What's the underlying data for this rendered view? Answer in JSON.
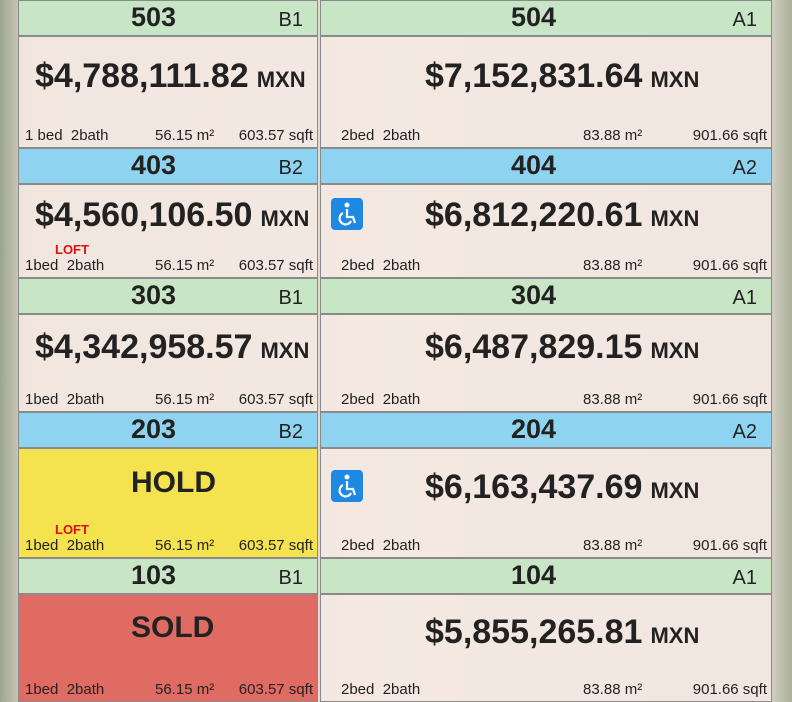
{
  "rows": [
    {
      "left": {
        "unit": "503",
        "model": "B1",
        "price": "$4,788,111.82",
        "currency": "MXN",
        "rooms": "1 bed  2bath",
        "m2": "56.15 m²",
        "sqft": "603.57 sqft"
      },
      "right": {
        "unit": "504",
        "model": "A1",
        "price": "$7,152,831.64",
        "currency": "MXN",
        "rooms": "2bed  2bath",
        "m2": "83.88 m²",
        "sqft": "901.66 sqft"
      }
    },
    {
      "left": {
        "unit": "403",
        "model": "B2",
        "price": "$4,560,106.50",
        "currency": "MXN",
        "loft": "LOFT",
        "rooms": "1bed  2bath",
        "m2": "56.15 m²",
        "sqft": "603.57 sqft"
      },
      "right": {
        "unit": "404",
        "model": "A2",
        "price": "$6,812,220.61",
        "currency": "MXN",
        "rooms": "2bed  2bath",
        "m2": "83.88 m²",
        "sqft": "901.66 sqft"
      }
    },
    {
      "left": {
        "unit": "303",
        "model": "B1",
        "price": "$4,342,958.57",
        "currency": "MXN",
        "rooms": "1bed  2bath",
        "m2": "56.15 m²",
        "sqft": "603.57 sqft"
      },
      "right": {
        "unit": "304",
        "model": "A1",
        "price": "$6,487,829.15",
        "currency": "MXN",
        "rooms": "2bed  2bath",
        "m2": "83.88 m²",
        "sqft": "901.66 sqft"
      }
    },
    {
      "left": {
        "unit": "203",
        "model": "B2",
        "status": "HOLD",
        "loft": "LOFT",
        "rooms": "1bed  2bath",
        "m2": "56.15 m²",
        "sqft": "603.57 sqft"
      },
      "right": {
        "unit": "204",
        "model": "A2",
        "price": "$6,163,437.69",
        "currency": "MXN",
        "rooms": "2bed  2bath",
        "m2": "83.88 m²",
        "sqft": "901.66 sqft"
      }
    },
    {
      "left": {
        "unit": "103",
        "model": "B1",
        "status": "SOLD",
        "rooms": "1bed  2bath",
        "m2": "56.15 m²",
        "sqft": "603.57 sqft"
      },
      "right": {
        "unit": "104",
        "model": "A1",
        "price": "$5,855,265.81",
        "currency": "MXN",
        "rooms": "2bed  2bath",
        "m2": "83.88 m²",
        "sqft": "901.66 sqft"
      }
    }
  ]
}
